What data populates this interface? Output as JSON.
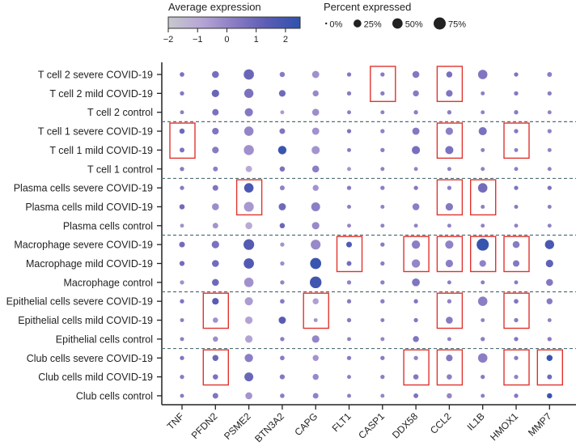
{
  "chart_data": {
    "type": "dotplot",
    "title": "",
    "xlabel": "",
    "ylabel": "",
    "color_legend": {
      "title": "Average expression",
      "range": [
        -2,
        2.5
      ],
      "ticks": [
        "-2",
        "-1",
        "0",
        "1",
        "2"
      ],
      "tick_values": [
        -2,
        -1,
        0,
        1,
        2
      ],
      "colors": [
        "#c8c8cc",
        "#b6a6d6",
        "#8a7cc4",
        "#5a5cb4",
        "#2f52ad"
      ]
    },
    "size_legend": {
      "title": "Percent expressed",
      "entries": [
        {
          "label": "0%",
          "value": 0
        },
        {
          "label": "25%",
          "value": 25
        },
        {
          "label": "50%",
          "value": 50
        },
        {
          "label": "75%",
          "value": 75
        }
      ]
    },
    "genes": [
      "TNF",
      "PFDN2",
      "PSME2",
      "BTN3A2",
      "CAPG",
      "FLT1",
      "CASP1",
      "DDX58",
      "CCL2",
      "IL1B",
      "HMOX1",
      "MMP7"
    ],
    "groups": [
      "T cell 2 severe COVID-19",
      "T cell 2 mild COVID-19",
      "T cell 2 control",
      "T cell 1 severe COVID-19",
      "T cell 1 mild COVID-19",
      "T cell 1 control",
      "Plasma cells severe COVID-19",
      "Plasma cells mild COVID-19",
      "Plasma cells control",
      "Macrophage severe COVID-19",
      "Macrophage mild COVID-19",
      "Macrophage control",
      "Epithelial cells severe COVID-19",
      "Epithelial cells mild COVID-19",
      "Epithelial cells control",
      "Club cells severe COVID-19",
      "Club cells mild COVID-19",
      "Club cells control"
    ],
    "percent_expressed": [
      [
        5,
        18,
        50,
        8,
        20,
        4,
        4,
        18,
        12,
        40,
        4,
        6
      ],
      [
        4,
        22,
        38,
        16,
        12,
        4,
        4,
        12,
        16,
        3,
        4,
        4
      ],
      [
        3,
        15,
        28,
        3,
        18,
        3,
        3,
        4,
        4,
        3,
        4,
        3
      ],
      [
        8,
        16,
        40,
        10,
        20,
        4,
        4,
        20,
        22,
        28,
        4,
        4
      ],
      [
        6,
        16,
        48,
        30,
        28,
        3,
        4,
        28,
        28,
        3,
        3,
        3
      ],
      [
        4,
        6,
        14,
        8,
        18,
        3,
        3,
        3,
        3,
        3,
        3,
        3
      ],
      [
        4,
        10,
        40,
        6,
        12,
        4,
        4,
        4,
        4,
        40,
        4,
        4
      ],
      [
        8,
        18,
        45,
        20,
        35,
        3,
        3,
        18,
        22,
        3,
        3,
        3
      ],
      [
        3,
        10,
        18,
        8,
        22,
        3,
        3,
        3,
        3,
        3,
        3,
        3
      ],
      [
        10,
        22,
        55,
        4,
        45,
        10,
        4,
        30,
        28,
        75,
        18,
        38
      ],
      [
        7,
        18,
        50,
        4,
        60,
        6,
        4,
        30,
        22,
        16,
        15,
        22
      ],
      [
        4,
        18,
        40,
        4,
        68,
        4,
        4,
        25,
        3,
        3,
        3,
        18
      ],
      [
        4,
        16,
        28,
        5,
        12,
        4,
        4,
        4,
        4,
        40,
        5,
        12
      ],
      [
        3,
        8,
        22,
        20,
        3,
        4,
        3,
        4,
        18,
        3,
        4,
        3
      ],
      [
        3,
        8,
        22,
        4,
        22,
        3,
        3,
        12,
        3,
        4,
        4,
        4
      ],
      [
        4,
        12,
        30,
        5,
        12,
        4,
        4,
        4,
        16,
        40,
        4,
        12
      ],
      [
        4,
        8,
        35,
        7,
        12,
        3,
        4,
        8,
        8,
        4,
        4,
        6
      ],
      [
        3,
        10,
        18,
        5,
        10,
        3,
        3,
        6,
        8,
        3,
        4,
        8
      ]
    ],
    "average_expression": [
      [
        0.6,
        0.7,
        1.0,
        0.3,
        -0.3,
        0.4,
        0.3,
        0.4,
        0.7,
        0.5,
        0.5,
        0.2
      ],
      [
        0.4,
        1.0,
        0.6,
        0.9,
        -0.1,
        0.3,
        0.2,
        0.3,
        0.5,
        0.2,
        0.4,
        0.2
      ],
      [
        0.2,
        0.6,
        0.4,
        -0.6,
        -0.2,
        0.2,
        0.1,
        0.2,
        0.2,
        0.1,
        0.3,
        0.1
      ],
      [
        0.9,
        0.5,
        0.0,
        0.5,
        -0.3,
        0.5,
        0.1,
        0.4,
        0.2,
        0.6,
        0.4,
        0.1
      ],
      [
        0.6,
        0.3,
        -0.3,
        2.2,
        -0.4,
        0.3,
        0.2,
        0.7,
        0.6,
        0.2,
        0.2,
        0.1
      ],
      [
        0.3,
        0.2,
        -1.0,
        0.6,
        0.2,
        -0.4,
        0.1,
        0.0,
        0.1,
        0.1,
        0.2,
        0.1
      ],
      [
        0.3,
        0.5,
        1.8,
        0.1,
        -0.4,
        0.3,
        0.2,
        0.4,
        0.2,
        0.8,
        0.5,
        0.6
      ],
      [
        0.8,
        -0.2,
        -0.5,
        0.9,
        0.2,
        0.2,
        0.1,
        0.2,
        0.4,
        0.2,
        0.3,
        0.2
      ],
      [
        -0.3,
        -0.4,
        -1.0,
        1.0,
        -0.1,
        0.0,
        0.1,
        0.1,
        0.1,
        0.1,
        0.1,
        0.1
      ],
      [
        0.8,
        0.6,
        1.5,
        -0.4,
        -0.1,
        1.6,
        0.3,
        0.2,
        0.1,
        2.3,
        0.3,
        1.8
      ],
      [
        0.8,
        0.8,
        1.6,
        -0.2,
        2.2,
        0.8,
        0.2,
        0.0,
        0.2,
        0.1,
        0.4,
        1.2
      ],
      [
        -0.3,
        0.9,
        -0.3,
        0.0,
        2.0,
        0.1,
        0.1,
        0.5,
        0.2,
        0.2,
        0.3,
        0.4
      ],
      [
        0.5,
        1.4,
        -0.6,
        0.3,
        -0.7,
        0.3,
        0.2,
        0.5,
        0.1,
        0.2,
        0.5,
        0.3
      ],
      [
        0.2,
        -0.3,
        -0.8,
        1.4,
        -0.4,
        0.3,
        0.2,
        0.4,
        0.3,
        0.1,
        0.3,
        0.1
      ],
      [
        0.2,
        -0.2,
        -0.8,
        0.2,
        0.0,
        0.1,
        0.0,
        0.5,
        0.1,
        0.2,
        0.4,
        0.2
      ],
      [
        0.5,
        1.0,
        0.2,
        0.3,
        -0.4,
        0.3,
        0.3,
        0.1,
        0.4,
        0.2,
        0.3,
        2.3
      ],
      [
        0.3,
        0.6,
        1.0,
        0.4,
        -0.1,
        0.2,
        0.2,
        0.4,
        0.2,
        0.3,
        0.1,
        0.9
      ],
      [
        0.3,
        0.5,
        -0.4,
        0.2,
        0.1,
        0.2,
        0.0,
        0.6,
        0.0,
        0.2,
        0.4,
        2.2
      ]
    ],
    "group_separators_after_rows": [
      2,
      5,
      8,
      11,
      14
    ],
    "highlight_boxes": [
      {
        "gene": "CASP1",
        "rows": [
          "T cell 2 severe COVID-19",
          "T cell 2 mild COVID-19"
        ]
      },
      {
        "gene": "CCL2",
        "rows": [
          "T cell 2 severe COVID-19",
          "T cell 2 mild COVID-19"
        ]
      },
      {
        "gene": "TNF",
        "rows": [
          "T cell 1 severe COVID-19",
          "T cell 1 mild COVID-19"
        ]
      },
      {
        "gene": "CCL2",
        "rows": [
          "T cell 1 severe COVID-19",
          "T cell 1 mild COVID-19"
        ]
      },
      {
        "gene": "HMOX1",
        "rows": [
          "T cell 1 severe COVID-19",
          "T cell 1 mild COVID-19"
        ]
      },
      {
        "gene": "PSME2",
        "rows": [
          "Plasma cells severe COVID-19",
          "Plasma cells mild COVID-19"
        ]
      },
      {
        "gene": "CCL2",
        "rows": [
          "Plasma cells severe COVID-19",
          "Plasma cells mild COVID-19"
        ]
      },
      {
        "gene": "IL1B",
        "rows": [
          "Plasma cells severe COVID-19",
          "Plasma cells mild COVID-19"
        ]
      },
      {
        "gene": "FLT1",
        "rows": [
          "Macrophage severe COVID-19",
          "Macrophage mild COVID-19"
        ]
      },
      {
        "gene": "DDX58",
        "rows": [
          "Macrophage severe COVID-19",
          "Macrophage mild COVID-19"
        ]
      },
      {
        "gene": "CCL2",
        "rows": [
          "Macrophage severe COVID-19",
          "Macrophage mild COVID-19"
        ]
      },
      {
        "gene": "IL1B",
        "rows": [
          "Macrophage severe COVID-19",
          "Macrophage mild COVID-19"
        ]
      },
      {
        "gene": "HMOX1",
        "rows": [
          "Macrophage severe COVID-19",
          "Macrophage mild COVID-19"
        ]
      },
      {
        "gene": "PFDN2",
        "rows": [
          "Epithelial cells severe COVID-19",
          "Epithelial cells mild COVID-19"
        ]
      },
      {
        "gene": "CAPG",
        "rows": [
          "Epithelial cells severe COVID-19",
          "Epithelial cells mild COVID-19"
        ]
      },
      {
        "gene": "CCL2",
        "rows": [
          "Epithelial cells severe COVID-19",
          "Epithelial cells mild COVID-19"
        ]
      },
      {
        "gene": "HMOX1",
        "rows": [
          "Epithelial cells severe COVID-19",
          "Epithelial cells mild COVID-19"
        ]
      },
      {
        "gene": "PFDN2",
        "rows": [
          "Club cells severe COVID-19",
          "Club cells mild COVID-19"
        ]
      },
      {
        "gene": "DDX58",
        "rows": [
          "Club cells severe COVID-19",
          "Club cells mild COVID-19"
        ]
      },
      {
        "gene": "CCL2",
        "rows": [
          "Club cells severe COVID-19",
          "Club cells mild COVID-19"
        ]
      },
      {
        "gene": "HMOX1",
        "rows": [
          "Club cells severe COVID-19",
          "Club cells mild COVID-19"
        ]
      },
      {
        "gene": "MMP7",
        "rows": [
          "Club cells severe COVID-19",
          "Club cells mild COVID-19"
        ]
      }
    ],
    "highlight_color": "#e0332d",
    "separator_color": "#4f6f78",
    "grid": false
  }
}
